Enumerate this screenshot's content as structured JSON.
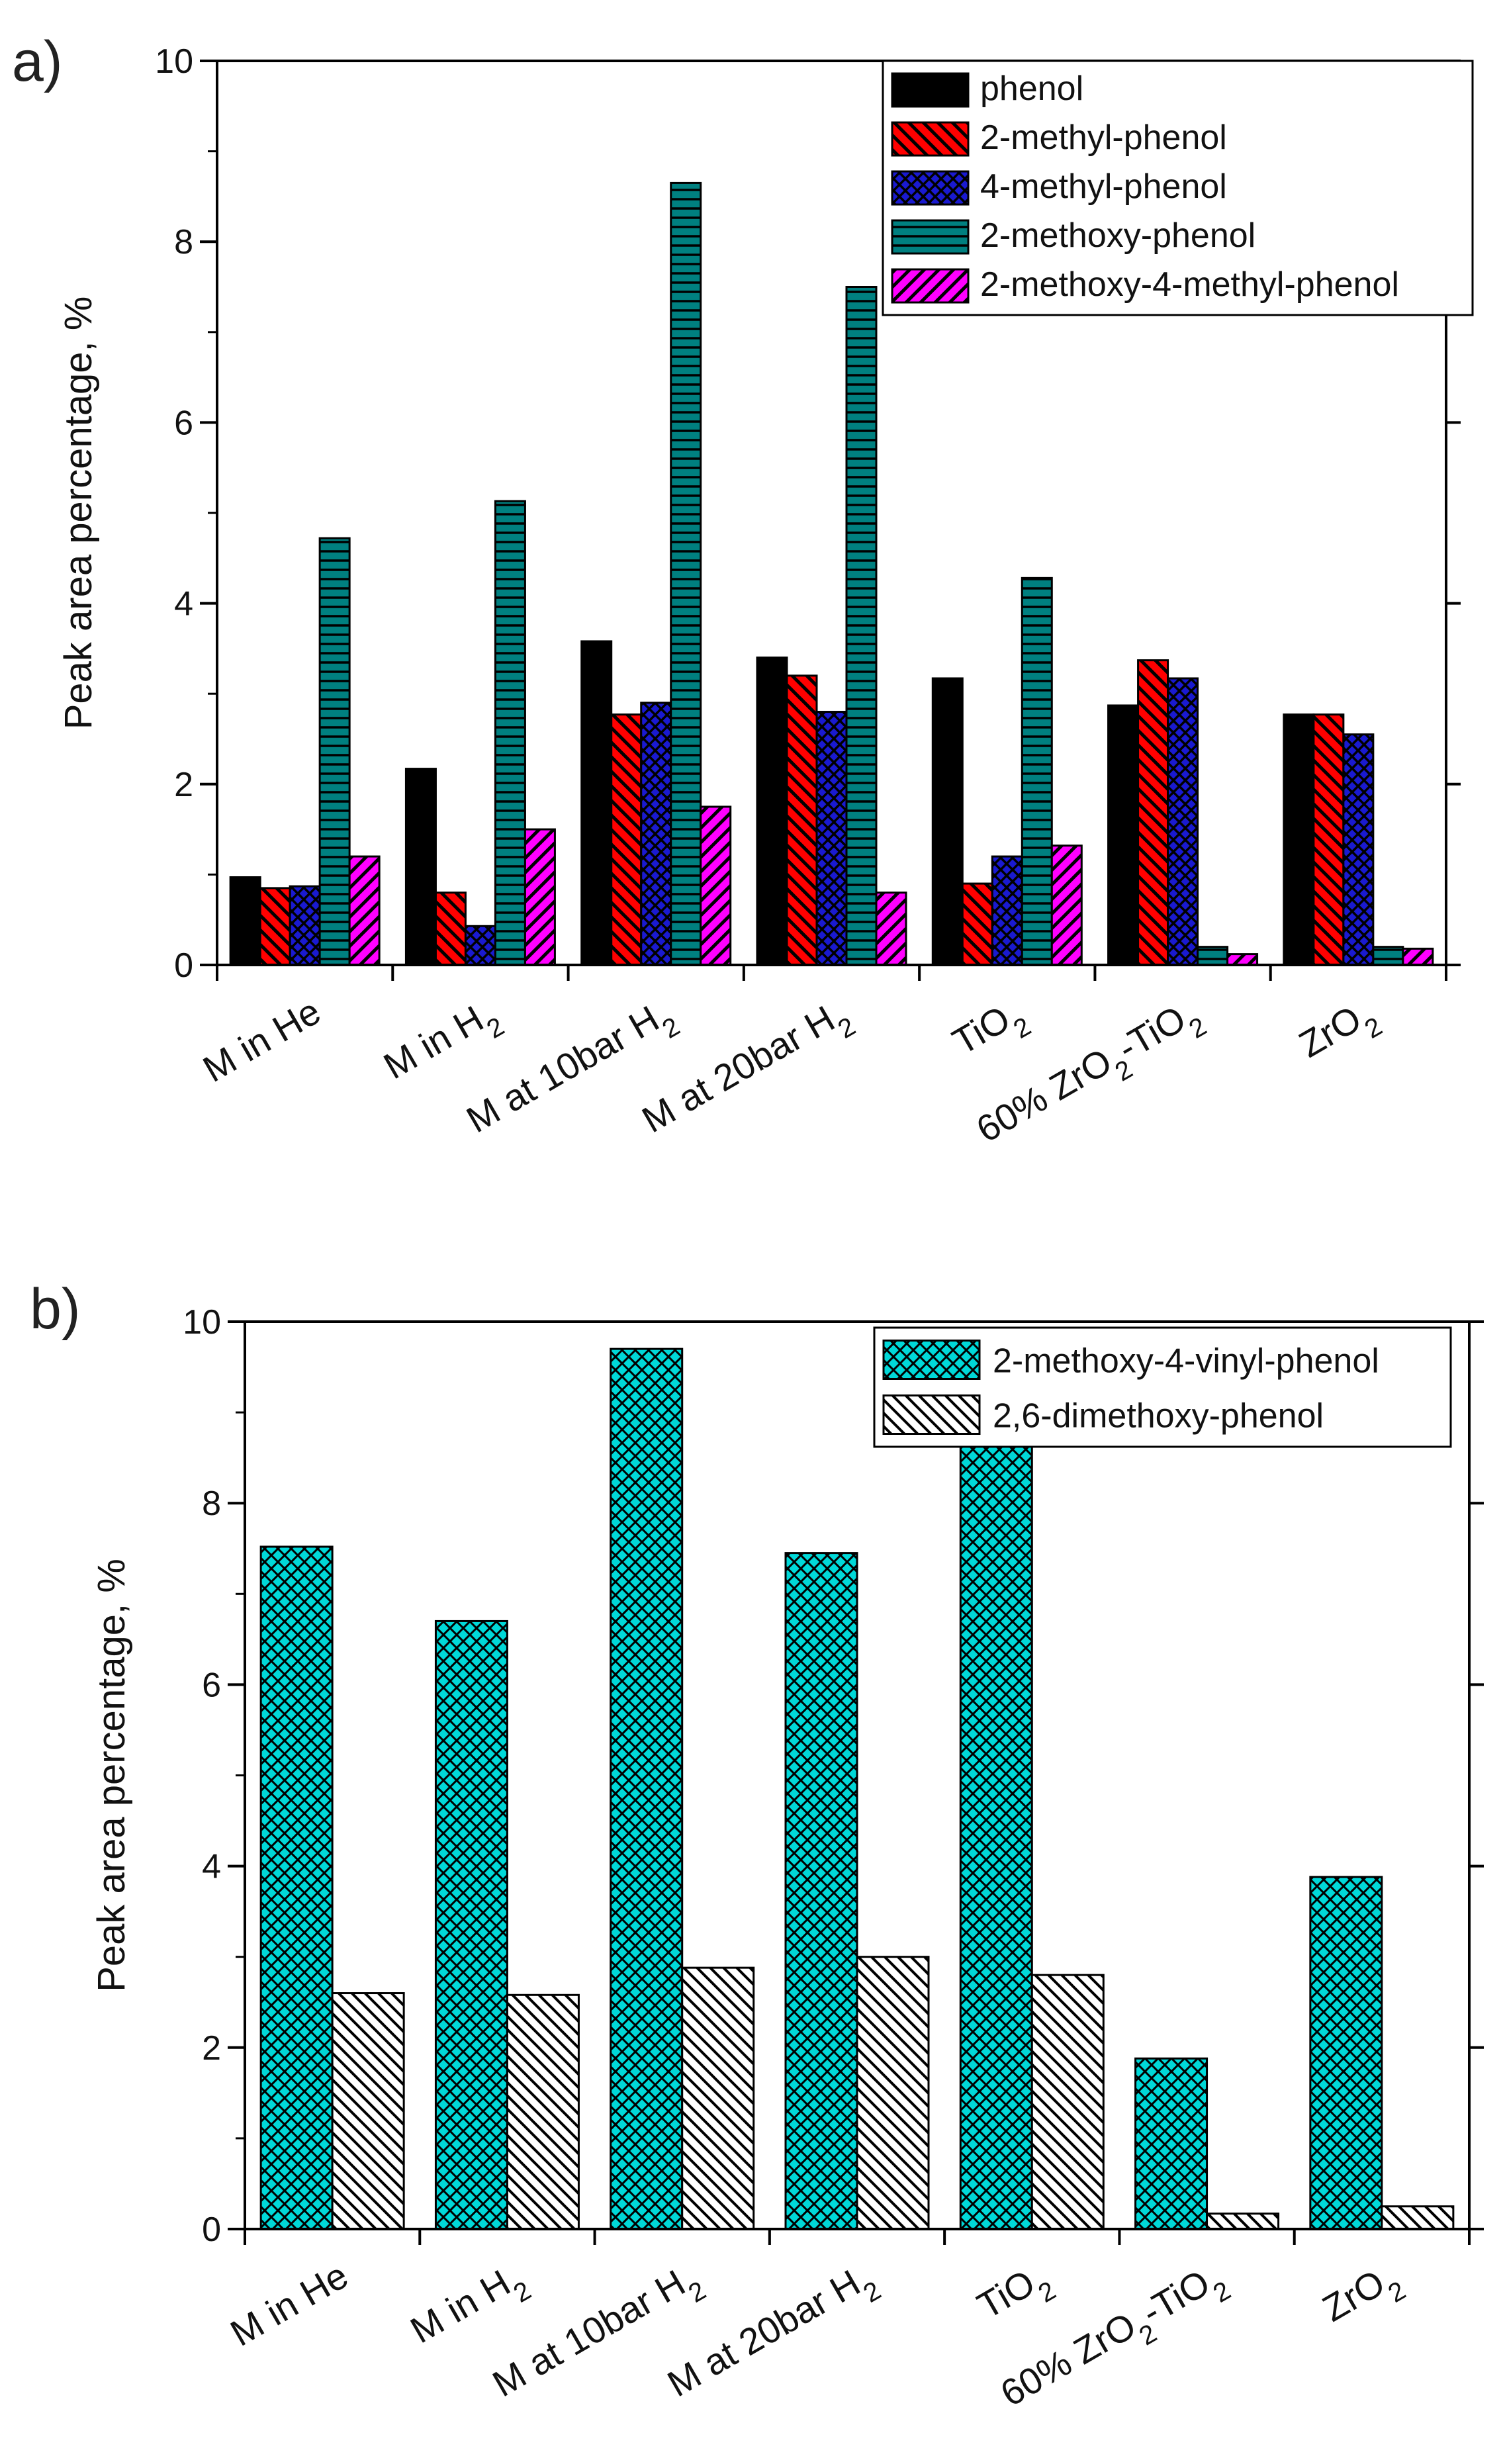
{
  "chart_data": [
    {
      "panel_label": "a)",
      "type": "bar",
      "ylabel": "Peak area percentage, %",
      "xlabel": "",
      "ylim": [
        0,
        10
      ],
      "yticks": [
        0,
        2,
        4,
        6,
        8,
        10
      ],
      "categories": [
        {
          "pre": "M in H",
          "sub": "",
          "post": "e"
        },
        {
          "pre": "M in H",
          "sub": "2",
          "post": ""
        },
        {
          "pre": "M at 10bar H",
          "sub": "2",
          "post": ""
        },
        {
          "pre": "M at 20bar H",
          "sub": "2",
          "post": ""
        },
        {
          "pre": "TiO",
          "sub": "2",
          "post": ""
        },
        {
          "pre": "60% ZrO",
          "sub": "2",
          "post": "-TiO",
          "sub2": "2"
        },
        {
          "pre": "ZrO",
          "sub": "2",
          "post": ""
        }
      ],
      "legend_position": "top-right",
      "series": [
        {
          "name": "phenol",
          "color": "#000000",
          "pattern": "solid",
          "values": [
            0.97,
            2.17,
            3.58,
            3.4,
            3.17,
            2.87,
            2.77
          ]
        },
        {
          "name": "2-methyl-phenol",
          "color": "#ff0000",
          "pattern": "diag-down",
          "values": [
            0.85,
            0.8,
            2.77,
            3.2,
            0.9,
            3.37,
            2.77
          ]
        },
        {
          "name": "4-methyl-phenol",
          "color": "#1010c0",
          "pattern": "crosshatch",
          "values": [
            0.87,
            0.43,
            2.9,
            2.8,
            1.2,
            3.17,
            2.55
          ]
        },
        {
          "name": "2-methoxy-phenol",
          "color": "#008080",
          "pattern": "horizontal",
          "values": [
            4.72,
            5.13,
            8.65,
            7.5,
            4.28,
            0.2,
            0.2
          ]
        },
        {
          "name": "2-methoxy-4-methyl-phenol",
          "color": "#ff00ff",
          "pattern": "diag-up",
          "values": [
            1.2,
            1.5,
            1.75,
            0.8,
            1.32,
            0.12,
            0.18
          ]
        }
      ]
    },
    {
      "panel_label": "b)",
      "type": "bar",
      "ylabel": "Peak area percentage, %",
      "xlabel": "",
      "ylim": [
        0,
        10
      ],
      "yticks": [
        0,
        2,
        4,
        6,
        8,
        10
      ],
      "categories": [
        {
          "pre": "M in H",
          "sub": "",
          "post": "e"
        },
        {
          "pre": "M in H",
          "sub": "2",
          "post": ""
        },
        {
          "pre": "M at 10bar H",
          "sub": "2",
          "post": ""
        },
        {
          "pre": "M at 20bar H",
          "sub": "2",
          "post": ""
        },
        {
          "pre": "TiO",
          "sub": "2",
          "post": ""
        },
        {
          "pre": "60% ZrO",
          "sub": "2",
          "post": "-TiO",
          "sub2": "2"
        },
        {
          "pre": "ZrO",
          "sub": "2",
          "post": ""
        }
      ],
      "legend_position": "top-right",
      "series": [
        {
          "name": "2-methoxy-4-vinyl-phenol",
          "color": "#00d0d0",
          "pattern": "crosshatch-dense",
          "values": [
            7.52,
            6.7,
            9.7,
            7.45,
            8.7,
            1.88,
            3.88
          ]
        },
        {
          "name": "2,6-dimethoxy-phenol",
          "color": "#ffffff",
          "pattern": "diag-down-black",
          "values": [
            2.6,
            2.58,
            2.88,
            3.0,
            2.8,
            0.17,
            0.25
          ]
        }
      ]
    }
  ]
}
